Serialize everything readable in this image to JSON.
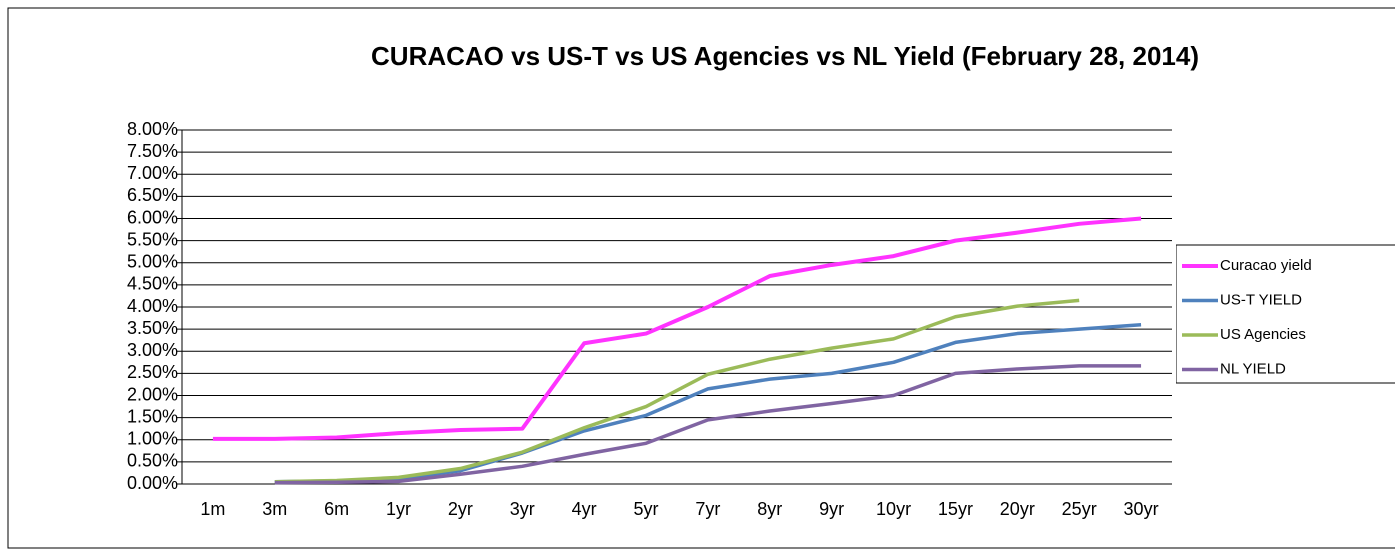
{
  "chart_data": {
    "type": "line",
    "title": "CURACAO vs US-T vs US Agencies vs NL Yield (February 28, 2014)",
    "categories": [
      "1m",
      "3m",
      "6m",
      "1yr",
      "2yr",
      "3yr",
      "4yr",
      "5yr",
      "7yr",
      "8yr",
      "9yr",
      "10yr",
      "15yr",
      "20yr",
      "25yr",
      "30yr"
    ],
    "series": [
      {
        "name": "Curacao yield",
        "color": "#ff33ff",
        "values": [
          1.02,
          1.02,
          1.05,
          1.15,
          1.22,
          1.25,
          3.18,
          3.4,
          4.0,
          4.7,
          4.95,
          5.15,
          5.5,
          5.68,
          5.88,
          6.0
        ]
      },
      {
        "name": "US-T YIELD",
        "color": "#4f81bd",
        "values": [
          null,
          0.05,
          0.07,
          0.12,
          0.3,
          0.7,
          1.2,
          1.55,
          2.15,
          2.37,
          2.5,
          2.75,
          3.2,
          3.4,
          3.5,
          3.6
        ]
      },
      {
        "name": "US Agencies",
        "color": "#9bbb59",
        "values": [
          null,
          0.05,
          0.08,
          0.15,
          0.35,
          0.72,
          1.27,
          1.75,
          2.48,
          2.82,
          3.07,
          3.28,
          3.78,
          4.02,
          4.15,
          null
        ]
      },
      {
        "name": "NL YIELD",
        "color": "#8064a2",
        "values": [
          null,
          0.03,
          0.04,
          0.06,
          0.22,
          0.4,
          0.67,
          0.92,
          1.45,
          1.65,
          1.82,
          2.0,
          2.5,
          2.6,
          2.67,
          2.67
        ]
      }
    ],
    "ylim": [
      0,
      8
    ],
    "yticks": [
      {
        "value": 0,
        "label": "0.00%"
      },
      {
        "value": 0.5,
        "label": "0.50%"
      },
      {
        "value": 1,
        "label": "1.00%"
      },
      {
        "value": 1.5,
        "label": "1.50%"
      },
      {
        "value": 2,
        "label": "2.00%"
      },
      {
        "value": 2.5,
        "label": "2.50%"
      },
      {
        "value": 3,
        "label": "3.00%"
      },
      {
        "value": 3.5,
        "label": "3.50%"
      },
      {
        "value": 4,
        "label": "4.00%"
      },
      {
        "value": 4.5,
        "label": "4.50%"
      },
      {
        "value": 5,
        "label": "5.00%"
      },
      {
        "value": 5.5,
        "label": "5.50%"
      },
      {
        "value": 6,
        "label": "6.00%"
      },
      {
        "value": 6.5,
        "label": "6.50%"
      },
      {
        "value": 7,
        "label": "7.00%"
      },
      {
        "value": 7.5,
        "label": "7.50%"
      },
      {
        "value": 8,
        "label": "8.00%"
      }
    ],
    "grid": true,
    "legend": "right"
  }
}
